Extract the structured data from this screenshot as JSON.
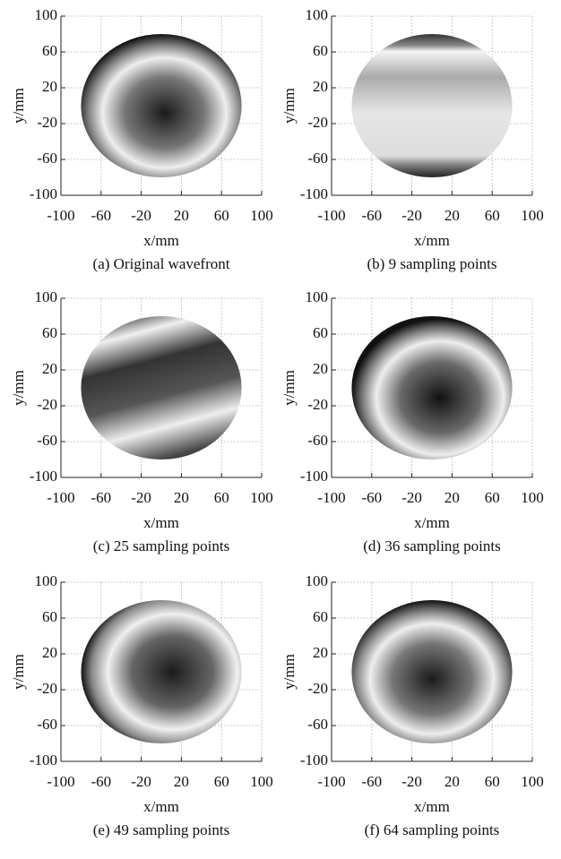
{
  "chart_data": [
    {
      "type": "image",
      "title": "(a) Original wavefront",
      "xlabel": "x/mm",
      "ylabel": "y/mm",
      "xlim": [
        -100,
        100
      ],
      "ylim": [
        -100,
        100
      ],
      "xticks": [
        -100,
        -60,
        -20,
        20,
        60,
        100
      ],
      "yticks": [
        -100,
        -60,
        -20,
        20,
        60,
        100
      ],
      "grid": true
    },
    {
      "type": "image",
      "title": "(b) 9 sampling points",
      "xlabel": "x/mm",
      "ylabel": "y/mm",
      "xlim": [
        -100,
        100
      ],
      "ylim": [
        -100,
        100
      ],
      "xticks": [
        -100,
        -60,
        -20,
        20,
        60,
        100
      ],
      "yticks": [
        -100,
        -60,
        -20,
        20,
        60,
        100
      ],
      "grid": true
    },
    {
      "type": "image",
      "title": "(c) 25 sampling points",
      "xlabel": "x/mm",
      "ylabel": "y/mm",
      "xlim": [
        -100,
        100
      ],
      "ylim": [
        -100,
        100
      ],
      "xticks": [
        -100,
        -60,
        -20,
        20,
        60,
        100
      ],
      "yticks": [
        -100,
        -60,
        -20,
        20,
        60,
        100
      ],
      "grid": true
    },
    {
      "type": "image",
      "title": "(d) 36 sampling points",
      "xlabel": "x/mm",
      "ylabel": "y/mm",
      "xlim": [
        -100,
        100
      ],
      "ylim": [
        -100,
        100
      ],
      "xticks": [
        -100,
        -60,
        -20,
        20,
        60,
        100
      ],
      "yticks": [
        -100,
        -60,
        -20,
        20,
        60,
        100
      ],
      "grid": true
    },
    {
      "type": "image",
      "title": "(e) 49 sampling points",
      "xlabel": "x/mm",
      "ylabel": "y/mm",
      "xlim": [
        -100,
        100
      ],
      "ylim": [
        -100,
        100
      ],
      "xticks": [
        -100,
        -60,
        -20,
        20,
        60,
        100
      ],
      "yticks": [
        -100,
        -60,
        -20,
        20,
        60,
        100
      ],
      "grid": true
    },
    {
      "type": "image",
      "title": "(f) 64 sampling points",
      "xlabel": "x/mm",
      "ylabel": "y/mm",
      "xlim": [
        -100,
        100
      ],
      "ylim": [
        -100,
        100
      ],
      "xticks": [
        -100,
        -60,
        -20,
        20,
        60,
        100
      ],
      "yticks": [
        -100,
        -60,
        -20,
        20,
        60,
        100
      ],
      "grid": true
    }
  ]
}
